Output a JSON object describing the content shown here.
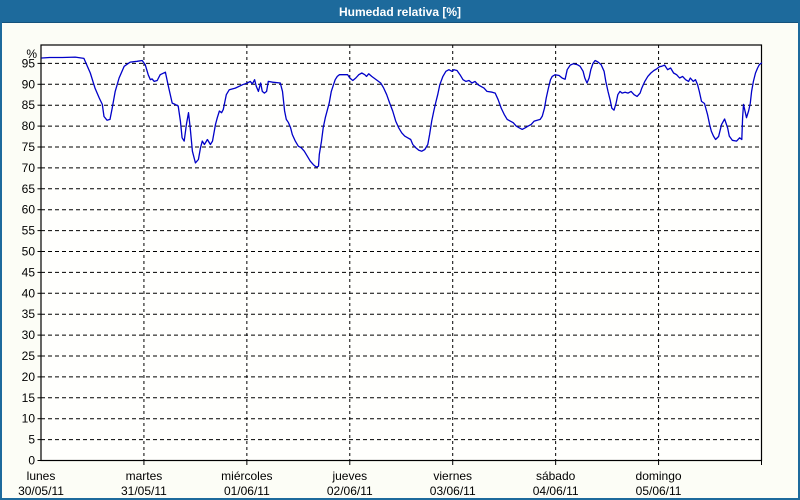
{
  "window": {
    "title": "Humedad relativa [%]"
  },
  "chart_data": {
    "type": "line",
    "title": "Humedad relativa [%]",
    "legend_position": "none",
    "grid": {
      "style": "dashed",
      "color": "#000000",
      "vertical_per_day": true
    },
    "colors": {
      "titlebar": "#1d6a9c",
      "window_border": "#1d6a9c",
      "background": "#fcfdf6",
      "plot_background": "#fffffd",
      "frame": "#000000",
      "line": "#0101c8",
      "text": "#000000"
    },
    "y_axis": {
      "unit_label": "%",
      "min": 0,
      "max": 99.4,
      "tick_step": 5,
      "tick_labels": [
        "0",
        "5",
        "10",
        "15",
        "20",
        "25",
        "30",
        "35",
        "40",
        "45",
        "50",
        "55",
        "60",
        "65",
        "70",
        "75",
        "80",
        "85",
        "90",
        "95"
      ]
    },
    "x_axis": {
      "hours_total": 168,
      "days": [
        {
          "name": "lunes",
          "date": "30/05/11"
        },
        {
          "name": "martes",
          "date": "31/05/11"
        },
        {
          "name": "miércoles",
          "date": "01/06/11"
        },
        {
          "name": "jueves",
          "date": "02/06/11"
        },
        {
          "name": "viernes",
          "date": "03/06/11"
        },
        {
          "name": "sábado",
          "date": "04/06/11"
        },
        {
          "name": "domingo",
          "date": "05/06/11"
        }
      ]
    },
    "series": [
      {
        "name": "Humedad relativa",
        "color": "#0101c8",
        "points": [
          [
            0.2,
            96.3
          ],
          [
            2,
            96.4
          ],
          [
            5,
            96.4
          ],
          [
            8,
            96.5
          ],
          [
            10,
            96.2
          ],
          [
            11.5,
            92.7
          ],
          [
            12.6,
            89.1
          ],
          [
            13.6,
            86.7
          ],
          [
            14.3,
            85.2
          ],
          [
            14.7,
            82.3
          ],
          [
            15.4,
            81.4
          ],
          [
            16.1,
            81.6
          ],
          [
            16.6,
            84.3
          ],
          [
            17.3,
            88.3
          ],
          [
            18.2,
            91.5
          ],
          [
            19.4,
            94.3
          ],
          [
            20.8,
            95.3
          ],
          [
            22.4,
            95.5
          ],
          [
            23.6,
            95.7
          ],
          [
            24.3,
            94.7
          ],
          [
            25,
            92.3
          ],
          [
            25.5,
            91.1
          ],
          [
            25.9,
            91.3
          ],
          [
            26.4,
            90.7
          ],
          [
            27.1,
            90.9
          ],
          [
            27.8,
            92.3
          ],
          [
            29,
            92.9
          ],
          [
            29.7,
            89.5
          ],
          [
            30.6,
            85.5
          ],
          [
            31.3,
            85.2
          ],
          [
            32,
            84.8
          ],
          [
            32.5,
            81.2
          ],
          [
            32.9,
            77.2
          ],
          [
            33.4,
            76.4
          ],
          [
            33.9,
            80.4
          ],
          [
            34.4,
            83.2
          ],
          [
            34.8,
            79.6
          ],
          [
            35.3,
            74
          ],
          [
            36,
            71.2
          ],
          [
            36.7,
            72
          ],
          [
            37.2,
            74.8
          ],
          [
            37.6,
            76.4
          ],
          [
            38.1,
            75.6
          ],
          [
            38.8,
            76.8
          ],
          [
            39.5,
            75.6
          ],
          [
            40,
            76.4
          ],
          [
            40.7,
            80.4
          ],
          [
            41.1,
            82
          ],
          [
            41.6,
            83.6
          ],
          [
            42.1,
            83.2
          ],
          [
            42.5,
            84
          ],
          [
            43.2,
            87.5
          ],
          [
            43.9,
            88.7
          ],
          [
            45.3,
            89.1
          ],
          [
            47,
            89.9
          ],
          [
            48.1,
            90.3
          ],
          [
            48.8,
            90.7
          ],
          [
            49.3,
            90.1
          ],
          [
            49.8,
            91.1
          ],
          [
            50.2,
            89.5
          ],
          [
            50.7,
            88.3
          ],
          [
            51.2,
            90.3
          ],
          [
            51.6,
            88.3
          ],
          [
            52.1,
            87.9
          ],
          [
            52.6,
            88.3
          ],
          [
            53,
            90.7
          ],
          [
            54,
            90.5
          ],
          [
            55.8,
            90.3
          ],
          [
            56.3,
            88.3
          ],
          [
            56.8,
            83.6
          ],
          [
            57.2,
            81.6
          ],
          [
            57.7,
            80.8
          ],
          [
            58.2,
            79.6
          ],
          [
            58.6,
            78
          ],
          [
            59.3,
            76.4
          ],
          [
            60,
            75.2
          ],
          [
            60.7,
            74.8
          ],
          [
            61.4,
            74
          ],
          [
            62.1,
            72.8
          ],
          [
            62.8,
            71.6
          ],
          [
            63.5,
            70.8
          ],
          [
            64.2,
            70.2
          ],
          [
            64.7,
            70.4
          ],
          [
            64.9,
            73.2
          ],
          [
            65.4,
            76.4
          ],
          [
            65.8,
            79.6
          ],
          [
            66.3,
            82
          ],
          [
            66.8,
            84
          ],
          [
            67.2,
            85.5
          ],
          [
            67.7,
            88.3
          ],
          [
            68.2,
            89.9
          ],
          [
            68.6,
            91.1
          ],
          [
            69.1,
            91.9
          ],
          [
            69.6,
            92.3
          ],
          [
            71.5,
            92.3
          ],
          [
            72,
            91.5
          ],
          [
            72.7,
            90.9
          ],
          [
            73.4,
            91.5
          ],
          [
            74.1,
            92.3
          ],
          [
            74.8,
            92.7
          ],
          [
            75.5,
            92.3
          ],
          [
            75.9,
            91.9
          ],
          [
            76.4,
            92.5
          ],
          [
            77.1,
            91.9
          ],
          [
            79.2,
            90.3
          ],
          [
            79.9,
            89.1
          ],
          [
            80.6,
            87.5
          ],
          [
            81.3,
            85.5
          ],
          [
            82,
            83.6
          ],
          [
            82.7,
            81.2
          ],
          [
            83.4,
            79.6
          ],
          [
            84.1,
            78.4
          ],
          [
            84.8,
            77.6
          ],
          [
            85.5,
            77.2
          ],
          [
            86.2,
            76.8
          ],
          [
            86.7,
            75.6
          ],
          [
            87.4,
            74.8
          ],
          [
            88.1,
            74.2
          ],
          [
            88.8,
            74
          ],
          [
            89.5,
            74.4
          ],
          [
            90.2,
            75.6
          ],
          [
            90.6,
            78
          ],
          [
            91.1,
            81.2
          ],
          [
            91.6,
            83.6
          ],
          [
            92,
            85.5
          ],
          [
            92.5,
            87.5
          ],
          [
            93,
            89.9
          ],
          [
            93.7,
            91.9
          ],
          [
            94.4,
            93.1
          ],
          [
            95.1,
            93.5
          ],
          [
            95.8,
            93.1
          ],
          [
            96.3,
            93.5
          ],
          [
            97,
            93.3
          ],
          [
            97.7,
            92.3
          ],
          [
            98.4,
            91.1
          ],
          [
            99.1,
            90.7
          ],
          [
            99.8,
            90.9
          ],
          [
            100.5,
            90.3
          ],
          [
            101.2,
            90.7
          ],
          [
            101.9,
            89.9
          ],
          [
            102.6,
            89.5
          ],
          [
            103.3,
            89.1
          ],
          [
            104,
            88.3
          ],
          [
            105.2,
            88.1
          ],
          [
            105.9,
            87.9
          ],
          [
            106.6,
            86.3
          ],
          [
            107.3,
            84.3
          ],
          [
            108,
            82.8
          ],
          [
            108.7,
            81.6
          ],
          [
            109.4,
            81.2
          ],
          [
            110.1,
            80.8
          ],
          [
            110.8,
            80
          ],
          [
            111.5,
            79.6
          ],
          [
            112.2,
            79.2
          ],
          [
            112.9,
            79.6
          ],
          [
            113.6,
            80
          ],
          [
            114.3,
            80.4
          ],
          [
            115,
            81.2
          ],
          [
            115.7,
            81.4
          ],
          [
            116.4,
            81.6
          ],
          [
            116.9,
            82.4
          ],
          [
            117.4,
            84.3
          ],
          [
            117.8,
            86.7
          ],
          [
            118.3,
            89.1
          ],
          [
            118.8,
            91.1
          ],
          [
            119.2,
            91.9
          ],
          [
            119.9,
            92.3
          ],
          [
            120.8,
            92.1
          ],
          [
            121.5,
            91.5
          ],
          [
            122.2,
            91.2
          ],
          [
            122.7,
            93.5
          ],
          [
            123.4,
            94.6
          ],
          [
            124.1,
            94.9
          ],
          [
            125,
            94.7
          ],
          [
            125.7,
            94.3
          ],
          [
            126.4,
            93.1
          ],
          [
            126.8,
            91.5
          ],
          [
            127.3,
            90.3
          ],
          [
            127.8,
            91.5
          ],
          [
            128.2,
            93.5
          ],
          [
            128.7,
            95
          ],
          [
            129.2,
            95.7
          ],
          [
            129.9,
            95.3
          ],
          [
            130.6,
            94.7
          ],
          [
            131.3,
            93.1
          ],
          [
            131.7,
            90.7
          ],
          [
            132.2,
            88.3
          ],
          [
            132.7,
            86.3
          ],
          [
            133.1,
            84.3
          ],
          [
            133.6,
            83.8
          ],
          [
            134.1,
            85.5
          ],
          [
            134.5,
            87.5
          ],
          [
            135,
            88.3
          ],
          [
            135.5,
            87.9
          ],
          [
            136.2,
            88.1
          ],
          [
            136.9,
            87.9
          ],
          [
            137.6,
            88.3
          ],
          [
            138.3,
            87.5
          ],
          [
            139,
            87.1
          ],
          [
            139.7,
            87.9
          ],
          [
            140.1,
            89.1
          ],
          [
            140.8,
            90.7
          ],
          [
            141.5,
            91.9
          ],
          [
            142.2,
            92.7
          ],
          [
            142.9,
            93.3
          ],
          [
            143.6,
            93.7
          ],
          [
            144.2,
            94.2
          ],
          [
            144.7,
            94.3
          ],
          [
            145.4,
            94.6
          ],
          [
            146.1,
            93.5
          ],
          [
            146.8,
            93.9
          ],
          [
            147.5,
            92.7
          ],
          [
            148.2,
            92.3
          ],
          [
            148.9,
            91.5
          ],
          [
            149.6,
            91.9
          ],
          [
            150.3,
            91.1
          ],
          [
            151,
            90.7
          ],
          [
            151.4,
            91.5
          ],
          [
            152.1,
            90.7
          ],
          [
            152.6,
            91.1
          ],
          [
            153.1,
            89.9
          ],
          [
            153.5,
            88.3
          ],
          [
            154,
            85.9
          ],
          [
            154.7,
            85.4
          ],
          [
            155.4,
            82.8
          ],
          [
            155.9,
            80.4
          ],
          [
            156.3,
            78.8
          ],
          [
            156.8,
            77.6
          ],
          [
            157.3,
            76.8
          ],
          [
            158,
            77.5
          ],
          [
            158.7,
            80.4
          ],
          [
            159.4,
            81.7
          ],
          [
            160.1,
            79.6
          ],
          [
            160.5,
            77.6
          ],
          [
            161.2,
            76.6
          ],
          [
            162.2,
            76.4
          ],
          [
            162.9,
            77.2
          ],
          [
            163.4,
            76.8
          ],
          [
            163.6,
            82
          ],
          [
            163.8,
            85.2
          ],
          [
            164.5,
            82
          ],
          [
            165,
            83.6
          ],
          [
            165.4,
            85.5
          ],
          [
            165.7,
            88.3
          ],
          [
            166.1,
            90.7
          ],
          [
            166.6,
            92.7
          ],
          [
            167.1,
            93.9
          ],
          [
            167.5,
            94.7
          ],
          [
            168,
            95.1
          ]
        ]
      }
    ]
  }
}
